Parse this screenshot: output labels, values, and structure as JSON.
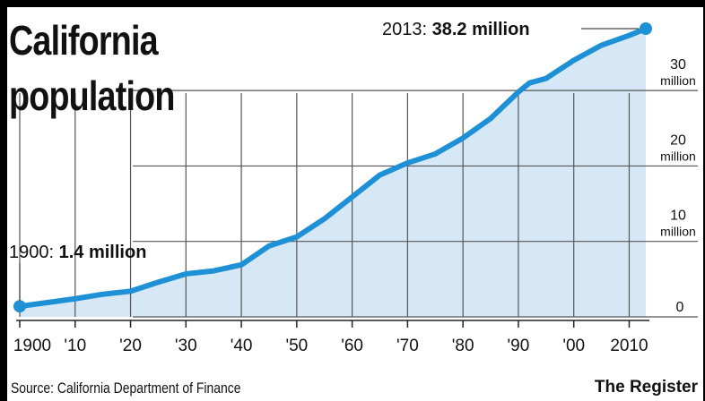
{
  "title_lines": [
    "California",
    "population"
  ],
  "source": "Source: California Department of Finance",
  "credit": "The Register",
  "colors": {
    "line": "#1e90d6",
    "fill": "#d6e8f6",
    "grid": "#555555",
    "background": "#ffffff",
    "frame": "#000000"
  },
  "annotations": {
    "start": {
      "year_label": "1900:",
      "value_label": "1.4 million"
    },
    "end": {
      "year_label": "2013:",
      "value_label": "38.2 million"
    }
  },
  "chart_data": {
    "type": "area",
    "title": "California population",
    "xlabel": "",
    "ylabel": "",
    "xlim": [
      1900,
      2013
    ],
    "ylim": [
      0,
      38.2
    ],
    "grid": true,
    "x_ticks": [
      1900,
      1910,
      1920,
      1930,
      1940,
      1950,
      1960,
      1970,
      1980,
      1990,
      2000,
      2010
    ],
    "x_tick_labels": [
      "1900",
      "'10",
      "'20",
      "'30",
      "'40",
      "'50",
      "'60",
      "'70",
      "'80",
      "'90",
      "'00",
      "2010"
    ],
    "y_ticks": [
      0,
      10,
      20,
      30
    ],
    "y_tick_labels": [
      [
        "0"
      ],
      [
        "10",
        "million"
      ],
      [
        "20",
        "million"
      ],
      [
        "30",
        "million"
      ]
    ],
    "series": [
      {
        "x": [
          1900,
          1905,
          1910,
          1915,
          1920,
          1925,
          1930,
          1935,
          1940,
          1943,
          1945,
          1950,
          1955,
          1960,
          1965,
          1970,
          1975,
          1980,
          1985,
          1990,
          1992,
          1995,
          2000,
          2005,
          2010,
          2013
        ],
        "values": [
          1.4,
          1.9,
          2.4,
          3.0,
          3.4,
          4.6,
          5.7,
          6.1,
          6.9,
          8.4,
          9.4,
          10.6,
          13.0,
          15.9,
          18.8,
          20.4,
          21.6,
          23.7,
          26.3,
          29.8,
          31.0,
          31.6,
          34.0,
          36.0,
          37.3,
          38.2
        ]
      }
    ],
    "annotations": [
      {
        "x": 1900,
        "y": 1.4,
        "text": "1900: 1.4 million"
      },
      {
        "x": 2013,
        "y": 38.2,
        "text": "2013: 38.2 million"
      }
    ]
  }
}
